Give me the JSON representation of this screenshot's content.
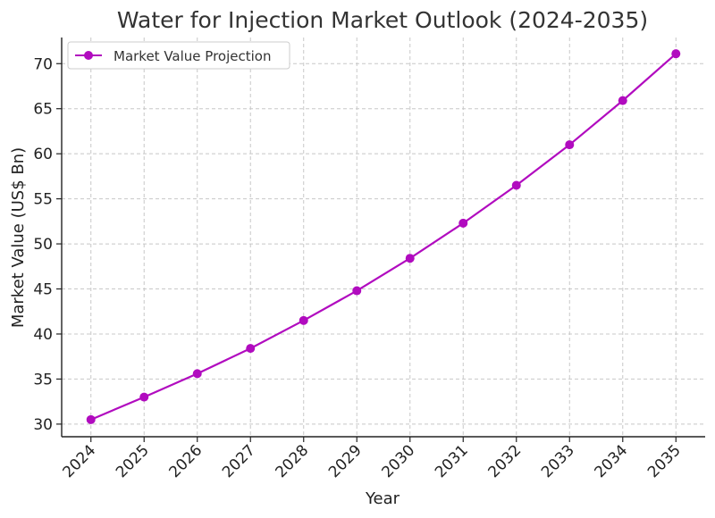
{
  "chart_data": {
    "type": "line",
    "title": "Water for Injection Market Outlook (2024-2035)",
    "xlabel": "Year",
    "ylabel": "Market Value (US$ Bn)",
    "x": [
      2024,
      2025,
      2026,
      2027,
      2028,
      2029,
      2030,
      2031,
      2032,
      2033,
      2034,
      2035
    ],
    "series": [
      {
        "name": "Market Value Projection",
        "color": "#b10bbf",
        "values": [
          30.5,
          33.0,
          35.6,
          38.4,
          41.5,
          44.8,
          48.4,
          52.3,
          56.5,
          61.0,
          65.9,
          71.1
        ]
      }
    ],
    "ylim": [
      28.6,
      72.9
    ],
    "yticks": [
      30,
      35,
      40,
      45,
      50,
      55,
      60,
      65,
      70
    ],
    "grid": true,
    "legend": "top-left"
  }
}
